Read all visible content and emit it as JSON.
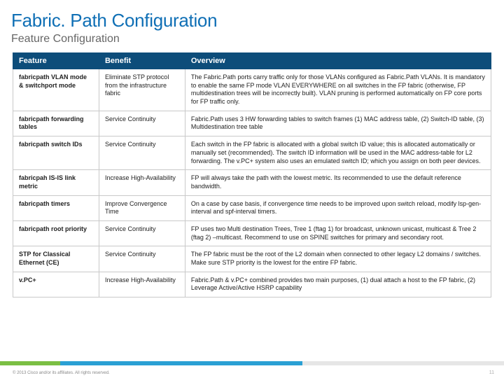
{
  "page": {
    "title": "Fabric. Path Configuration",
    "subtitle": "Feature Configuration",
    "copyright": "© 2013 Cisco and/or its affiliates. All rights reserved.",
    "page_number": "11",
    "colors": {
      "title_color": "#0f6fb5",
      "subtitle_color": "#666666",
      "header_bg": "#0d4d7a",
      "header_text": "#ffffff",
      "cell_border": "#c9c9c9",
      "footer_green": "#7bbf43",
      "footer_blue": "#2aa0d4",
      "footer_gray": "#e6e6e6"
    }
  },
  "table": {
    "columns": [
      "Feature",
      "Benefit",
      "Overview"
    ],
    "col_widths_pct": [
      18,
      18,
      64
    ],
    "header_fontsize": 11,
    "cell_fontsize": 9,
    "rows": [
      {
        "feature": "fabricpath VLAN mode & switchport mode",
        "benefit": "Eliminate STP protocol from the infrastructure fabric",
        "overview": "The Fabric.Path ports carry traffic only for those VLANs configured as Fabric.Path VLANs. It is mandatory to enable the same FP mode VLAN EVERYWHERE on all switches in the FP fabric (otherwise, FP multidestination trees will be incorrectly built). VLAN pruning is performed automatically on FP core ports for FP traffic only."
      },
      {
        "feature": "fabricpath forwarding tables",
        "benefit": "Service Continuity",
        "overview": "Fabric.Path uses 3 HW forwarding tables to switch frames (1) MAC address table, (2) Switch-ID table, (3) Multidestination tree table"
      },
      {
        "feature": "fabricpath switch IDs",
        "benefit": "Service Continuity",
        "overview": "Each switch in the FP fabric is allocated with a global switch ID value; this is allocated automatically or manually set (recommended). The switch ID information will be used in the MAC address-table for L2 forwarding. The v.PC+ system also uses an emulated switch ID; which you assign on both peer devices."
      },
      {
        "feature": "fabricpah IS-IS link metric",
        "benefit": "Increase High-Availability",
        "overview": "FP will always take the path with the lowest metric. Its recommended to use the default reference bandwidth."
      },
      {
        "feature": "fabricpath timers",
        "benefit": "Improve Convergence Time",
        "overview": "On a case by case basis, if convergence time needs to be improved upon switch reload, modify lsp-gen-interval and spf-interval timers."
      },
      {
        "feature": "fabricpath root priority",
        "benefit": "Service Continuity",
        "overview": "FP uses two Multi destination Trees, Tree 1 (ftag 1) for broadcast, unknown unicast, multicast & Tree 2 (ftag 2) –multicast. Recommend to use on SPINE switches for primary and secondary root."
      },
      {
        "feature": "STP for Classical Ethernet (CE)",
        "benefit": "Service Continuity",
        "overview": "The FP fabric must be the root of the L2 domain when connected to other legacy L2 domains / switches. Make sure STP priority is the lowest for the entire FP fabric."
      },
      {
        "feature": "v.PC+",
        "benefit": "Increase High-Availability",
        "overview": "Fabric.Path & v.PC+ combined provides two main purposes, (1) dual attach a host to the FP fabric, (2) Leverage Active/Active HSRP capability"
      }
    ]
  }
}
